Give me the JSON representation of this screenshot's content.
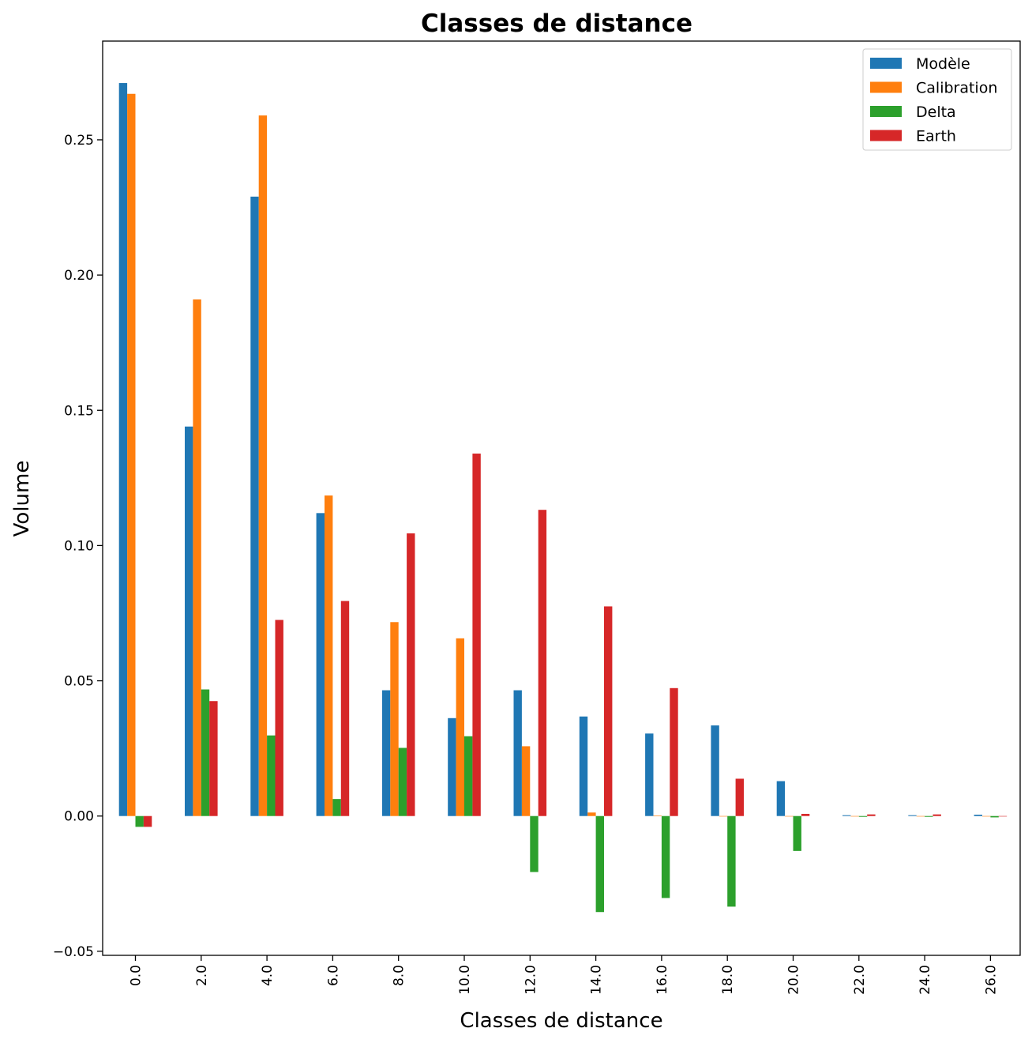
{
  "chart_data": {
    "type": "bar",
    "title": "Classes de distance",
    "xlabel": "Classes de distance",
    "ylabel": "Volume",
    "categories": [
      "0.0",
      "2.0",
      "4.0",
      "6.0",
      "8.0",
      "10.0",
      "12.0",
      "14.0",
      "16.0",
      "18.0",
      "20.0",
      "22.0",
      "24.0",
      "26.0"
    ],
    "series": [
      {
        "name": "Modèle",
        "color": "#1f77b4",
        "values": [
          0.271,
          0.144,
          0.229,
          0.112,
          0.0465,
          0.0362,
          0.0465,
          0.0368,
          0.0305,
          0.0335,
          0.0129,
          0.0003,
          0.0003,
          0.0005
        ]
      },
      {
        "name": "Calibration",
        "color": "#ff7f0e",
        "values": [
          0.267,
          0.191,
          0.259,
          0.1185,
          0.0717,
          0.0657,
          0.0258,
          0.0013,
          0.0002,
          0.0,
          0.0,
          0.0,
          0.0,
          0.0
        ]
      },
      {
        "name": "Delta",
        "color": "#2ca02c",
        "values": [
          -0.004,
          0.0468,
          0.0298,
          0.0063,
          0.0252,
          0.0295,
          -0.0207,
          -0.0355,
          -0.0303,
          -0.0335,
          -0.0129,
          -0.0003,
          -0.0003,
          -0.0005
        ]
      },
      {
        "name": "Earth",
        "color": "#d62728",
        "values": [
          -0.004,
          0.0425,
          0.0725,
          0.0795,
          0.1045,
          0.134,
          0.1132,
          0.0775,
          0.0473,
          0.0138,
          0.0008,
          0.0006,
          0.0006,
          0.0
        ]
      }
    ],
    "ylim": [
      -0.0515,
      0.2865
    ],
    "yticks": [
      -0.05,
      0.0,
      0.05,
      0.1,
      0.15,
      0.2,
      0.25
    ],
    "ytick_labels": [
      "−0.05",
      "0.00",
      "0.05",
      "0.10",
      "0.15",
      "0.20",
      "0.25"
    ],
    "grid": false,
    "legend_position": "top-right"
  }
}
